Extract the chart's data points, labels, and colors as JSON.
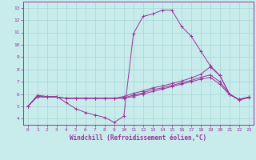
{
  "xlabel": "Windchill (Refroidissement éolien,°C)",
  "bg_color": "#c8ecec",
  "grid_color": "#a8d4d4",
  "line_color": "#993399",
  "xlim": [
    -0.5,
    23.5
  ],
  "ylim": [
    3.5,
    13.5
  ],
  "xticks": [
    0,
    1,
    2,
    3,
    4,
    5,
    6,
    7,
    8,
    9,
    10,
    11,
    12,
    13,
    14,
    15,
    16,
    17,
    18,
    19,
    20,
    21,
    22,
    23
  ],
  "yticks": [
    4,
    5,
    6,
    7,
    8,
    9,
    10,
    11,
    12,
    13
  ],
  "lines": [
    {
      "x": [
        0,
        1,
        2,
        3,
        4,
        5,
        6,
        7,
        8,
        9,
        10,
        11,
        12,
        13,
        14,
        15,
        16,
        17,
        18,
        19,
        20,
        21,
        22,
        23
      ],
      "y": [
        5.0,
        5.9,
        5.8,
        5.8,
        5.3,
        4.8,
        4.5,
        4.3,
        4.1,
        3.7,
        4.2,
        10.9,
        12.3,
        12.5,
        12.8,
        12.8,
        11.5,
        10.7,
        9.5,
        8.3,
        7.5,
        6.0,
        5.5,
        5.7
      ]
    },
    {
      "x": [
        0,
        1,
        2,
        3,
        4,
        5,
        6,
        7,
        8,
        9,
        10,
        11,
        12,
        13,
        14,
        15,
        16,
        17,
        18,
        19,
        20,
        21,
        22,
        23
      ],
      "y": [
        5.0,
        5.8,
        5.75,
        5.75,
        5.65,
        5.65,
        5.65,
        5.65,
        5.65,
        5.65,
        5.8,
        6.05,
        6.25,
        6.5,
        6.65,
        6.85,
        7.05,
        7.3,
        7.6,
        8.2,
        7.5,
        6.0,
        5.55,
        5.75
      ]
    },
    {
      "x": [
        0,
        1,
        2,
        3,
        4,
        5,
        6,
        7,
        8,
        9,
        10,
        11,
        12,
        13,
        14,
        15,
        16,
        17,
        18,
        19,
        20,
        21,
        22,
        23
      ],
      "y": [
        5.0,
        5.8,
        5.75,
        5.75,
        5.65,
        5.65,
        5.65,
        5.65,
        5.65,
        5.65,
        5.7,
        5.9,
        6.1,
        6.35,
        6.5,
        6.7,
        6.9,
        7.1,
        7.35,
        7.55,
        7.0,
        6.0,
        5.55,
        5.75
      ]
    },
    {
      "x": [
        0,
        1,
        2,
        3,
        4,
        5,
        6,
        7,
        8,
        9,
        10,
        11,
        12,
        13,
        14,
        15,
        16,
        17,
        18,
        19,
        20,
        21,
        22,
        23
      ],
      "y": [
        5.0,
        5.8,
        5.75,
        5.75,
        5.65,
        5.65,
        5.65,
        5.65,
        5.65,
        5.65,
        5.65,
        5.8,
        6.0,
        6.2,
        6.4,
        6.6,
        6.8,
        7.0,
        7.2,
        7.35,
        6.8,
        5.95,
        5.55,
        5.75
      ]
    }
  ],
  "figsize": [
    3.2,
    2.0
  ],
  "dpi": 100,
  "axis_fontsize": 5.5,
  "tick_fontsize": 4.5
}
